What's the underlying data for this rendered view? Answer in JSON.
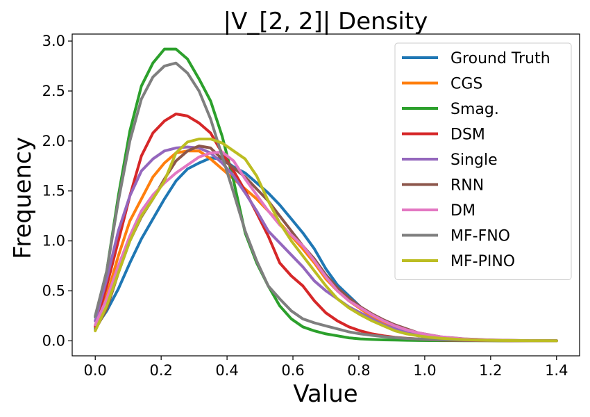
{
  "chart_data": {
    "type": "line",
    "title": "|V_[2, 2]| Density",
    "xlabel": "Value",
    "ylabel": "Frequency",
    "xlim": [
      -0.07,
      1.47
    ],
    "ylim": [
      -0.15,
      3.07
    ],
    "xticks": [
      0.0,
      0.2,
      0.4,
      0.6,
      0.8,
      1.0,
      1.2,
      1.4
    ],
    "xtick_labels": [
      "0.0",
      "0.2",
      "0.4",
      "0.6",
      "0.8",
      "1.0",
      "1.2",
      "1.4"
    ],
    "yticks": [
      0.0,
      0.5,
      1.0,
      1.5,
      2.0,
      2.5,
      3.0
    ],
    "ytick_labels": [
      "0.0",
      "0.5",
      "1.0",
      "1.5",
      "2.0",
      "2.5",
      "3.0"
    ],
    "grid": false,
    "legend_position": "top-right",
    "x": [
      0.0,
      0.035,
      0.07,
      0.105,
      0.14,
      0.175,
      0.21,
      0.245,
      0.28,
      0.315,
      0.35,
      0.385,
      0.42,
      0.455,
      0.49,
      0.525,
      0.56,
      0.595,
      0.63,
      0.665,
      0.7,
      0.735,
      0.77,
      0.805,
      0.84,
      0.875,
      0.91,
      0.945,
      0.98,
      1.015,
      1.05,
      1.085,
      1.12,
      1.155,
      1.19,
      1.225,
      1.26,
      1.295,
      1.33,
      1.365,
      1.4
    ],
    "series": [
      {
        "name": "Ground Truth",
        "color": "#1f77b4",
        "values": [
          0.13,
          0.3,
          0.52,
          0.78,
          1.02,
          1.22,
          1.42,
          1.6,
          1.72,
          1.78,
          1.83,
          1.82,
          1.74,
          1.68,
          1.58,
          1.48,
          1.36,
          1.22,
          1.08,
          0.92,
          0.72,
          0.56,
          0.45,
          0.34,
          0.24,
          0.17,
          0.12,
          0.08,
          0.05,
          0.035,
          0.025,
          0.018,
          0.013,
          0.01,
          0.007,
          0.005,
          0.004,
          0.003,
          0.002,
          0.002,
          0.001
        ]
      },
      {
        "name": "CGS",
        "color": "#ff7f0e",
        "values": [
          0.14,
          0.45,
          0.85,
          1.2,
          1.42,
          1.64,
          1.78,
          1.88,
          1.9,
          1.9,
          1.82,
          1.72,
          1.62,
          1.52,
          1.42,
          1.3,
          1.18,
          1.05,
          0.92,
          0.78,
          0.62,
          0.5,
          0.4,
          0.32,
          0.24,
          0.17,
          0.12,
          0.08,
          0.055,
          0.04,
          0.028,
          0.02,
          0.014,
          0.01,
          0.007,
          0.005,
          0.004,
          0.003,
          0.002,
          0.002,
          0.001
        ]
      },
      {
        "name": "Smag.",
        "color": "#2ca02c",
        "values": [
          0.24,
          0.7,
          1.45,
          2.1,
          2.55,
          2.78,
          2.92,
          2.92,
          2.82,
          2.62,
          2.4,
          2.05,
          1.6,
          1.08,
          0.78,
          0.55,
          0.35,
          0.22,
          0.14,
          0.1,
          0.07,
          0.05,
          0.03,
          0.02,
          0.014,
          0.01,
          0.008,
          0.006,
          0.004,
          0.003,
          0.002,
          0.002,
          0.001,
          0.001,
          0.001,
          0.0,
          0.0,
          0.0,
          0.0,
          0.0,
          0.0
        ]
      },
      {
        "name": "DSM",
        "color": "#d62728",
        "values": [
          0.15,
          0.55,
          1.0,
          1.45,
          1.85,
          2.08,
          2.2,
          2.27,
          2.25,
          2.18,
          2.08,
          1.88,
          1.7,
          1.5,
          1.28,
          1.05,
          0.78,
          0.65,
          0.55,
          0.4,
          0.28,
          0.2,
          0.14,
          0.1,
          0.07,
          0.05,
          0.035,
          0.025,
          0.018,
          0.012,
          0.008,
          0.006,
          0.004,
          0.003,
          0.002,
          0.002,
          0.001,
          0.001,
          0.001,
          0.0,
          0.0
        ]
      },
      {
        "name": "Single",
        "color": "#9467bd",
        "values": [
          0.2,
          0.62,
          1.1,
          1.45,
          1.7,
          1.82,
          1.9,
          1.93,
          1.94,
          1.93,
          1.88,
          1.78,
          1.65,
          1.48,
          1.3,
          1.1,
          0.98,
          0.86,
          0.74,
          0.6,
          0.5,
          0.42,
          0.34,
          0.28,
          0.22,
          0.16,
          0.12,
          0.08,
          0.055,
          0.038,
          0.026,
          0.018,
          0.012,
          0.008,
          0.005,
          0.004,
          0.003,
          0.002,
          0.001,
          0.001,
          0.001
        ]
      },
      {
        "name": "RNN",
        "color": "#8c564b",
        "values": [
          0.11,
          0.32,
          0.68,
          1.0,
          1.24,
          1.42,
          1.62,
          1.8,
          1.9,
          1.95,
          1.93,
          1.82,
          1.73,
          1.64,
          1.52,
          1.4,
          1.25,
          1.1,
          0.95,
          0.82,
          0.66,
          0.53,
          0.43,
          0.34,
          0.27,
          0.21,
          0.16,
          0.12,
          0.08,
          0.06,
          0.04,
          0.03,
          0.02,
          0.015,
          0.01,
          0.007,
          0.005,
          0.003,
          0.002,
          0.001,
          0.001
        ]
      },
      {
        "name": "DM",
        "color": "#e377c2",
        "values": [
          0.16,
          0.42,
          0.75,
          1.05,
          1.3,
          1.46,
          1.58,
          1.68,
          1.76,
          1.84,
          1.88,
          1.89,
          1.8,
          1.62,
          1.46,
          1.3,
          1.16,
          1.06,
          0.95,
          0.8,
          0.64,
          0.5,
          0.4,
          0.33,
          0.26,
          0.2,
          0.15,
          0.11,
          0.08,
          0.058,
          0.04,
          0.028,
          0.019,
          0.013,
          0.009,
          0.006,
          0.004,
          0.003,
          0.002,
          0.001,
          0.001
        ]
      },
      {
        "name": "MF-FNO",
        "color": "#7f7f7f",
        "values": [
          0.25,
          0.7,
          1.4,
          2.0,
          2.42,
          2.64,
          2.75,
          2.78,
          2.68,
          2.5,
          2.22,
          1.85,
          1.48,
          1.1,
          0.8,
          0.55,
          0.42,
          0.3,
          0.22,
          0.18,
          0.15,
          0.12,
          0.09,
          0.07,
          0.055,
          0.042,
          0.032,
          0.024,
          0.018,
          0.013,
          0.01,
          0.008,
          0.006,
          0.005,
          0.004,
          0.003,
          0.002,
          0.002,
          0.001,
          0.001,
          0.001
        ]
      },
      {
        "name": "MF-PINO",
        "color": "#bcbd22",
        "values": [
          0.1,
          0.35,
          0.68,
          1.0,
          1.25,
          1.42,
          1.6,
          1.88,
          1.99,
          2.02,
          2.02,
          1.98,
          1.9,
          1.82,
          1.65,
          1.4,
          1.18,
          1.0,
          0.85,
          0.7,
          0.55,
          0.42,
          0.33,
          0.26,
          0.2,
          0.15,
          0.1,
          0.07,
          0.05,
          0.035,
          0.025,
          0.018,
          0.012,
          0.008,
          0.006,
          0.004,
          0.003,
          0.002,
          0.001,
          0.001,
          0.0
        ]
      }
    ]
  }
}
